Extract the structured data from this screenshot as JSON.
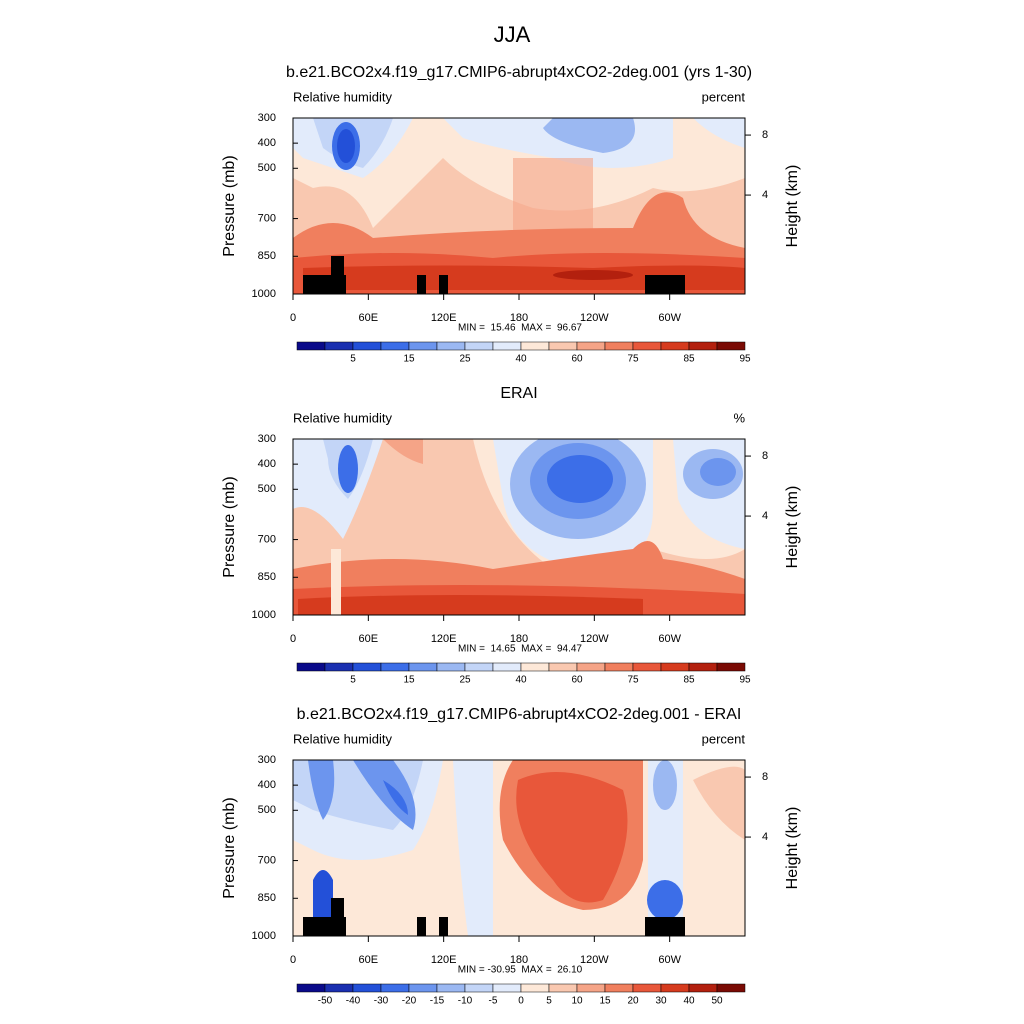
{
  "title": "JJA",
  "chart_data": [
    {
      "type": "contour",
      "title": "b.e21.BCO2x4.f19_g17.CMIP6-abrupt4xCO2-2deg.001 (yrs 1-30)",
      "left_label": "Relative humidity",
      "right_label": "percent",
      "ylabel": "Pressure (mb)",
      "y2label": "Height (km)",
      "xlim": [
        0,
        360
      ],
      "xticks": [
        0,
        {
          "value": 60,
          "label": "60E"
        },
        {
          "value": 120,
          "label": "120E"
        },
        180,
        {
          "value": 240,
          "label": "120W"
        },
        {
          "value": 300,
          "label": "60W"
        }
      ],
      "ylim": [
        1000,
        300
      ],
      "yticks": [
        300,
        400,
        500,
        700,
        850,
        1000
      ],
      "y2ticks": [
        8,
        4
      ],
      "stats": "MIN =  15.46  MAX =  96.67",
      "colorbar": {
        "colors": [
          "#0a0a8a",
          "#1a2fb0",
          "#2350d8",
          "#3c6ee8",
          "#6c95ee",
          "#9bb8f2",
          "#c3d5f7",
          "#e2ebfb",
          "#fde8d8",
          "#f9c8b0",
          "#f5a487",
          "#f07f5e",
          "#e8573a",
          "#d63b1e",
          "#b3200e",
          "#7a0a04"
        ],
        "labels": [
          5,
          15,
          25,
          40,
          60,
          75,
          85,
          95
        ]
      }
    },
    {
      "type": "contour",
      "title": "ERAI",
      "left_label": "Relative humidity",
      "right_label": "%",
      "ylabel": "Pressure (mb)",
      "y2label": "Height (km)",
      "xlim": [
        0,
        360
      ],
      "xticks": [
        0,
        {
          "value": 60,
          "label": "60E"
        },
        {
          "value": 120,
          "label": "120E"
        },
        180,
        {
          "value": 240,
          "label": "120W"
        },
        {
          "value": 300,
          "label": "60W"
        }
      ],
      "ylim": [
        1000,
        300
      ],
      "yticks": [
        300,
        400,
        500,
        700,
        850,
        1000
      ],
      "y2ticks": [
        8,
        4
      ],
      "stats": "MIN =  14.65  MAX =  94.47",
      "colorbar": {
        "colors": [
          "#0a0a8a",
          "#1a2fb0",
          "#2350d8",
          "#3c6ee8",
          "#6c95ee",
          "#9bb8f2",
          "#c3d5f7",
          "#e2ebfb",
          "#fde8d8",
          "#f9c8b0",
          "#f5a487",
          "#f07f5e",
          "#e8573a",
          "#d63b1e",
          "#b3200e",
          "#7a0a04"
        ],
        "labels": [
          5,
          15,
          25,
          40,
          60,
          75,
          85,
          95
        ]
      }
    },
    {
      "type": "contour",
      "title": "b.e21.BCO2x4.f19_g17.CMIP6-abrupt4xCO2-2deg.001 - ERAI",
      "left_label": "Relative humidity",
      "right_label": "percent",
      "ylabel": "Pressure (mb)",
      "y2label": "Height (km)",
      "xlim": [
        0,
        360
      ],
      "xticks": [
        0,
        {
          "value": 60,
          "label": "60E"
        },
        {
          "value": 120,
          "label": "120E"
        },
        180,
        {
          "value": 240,
          "label": "120W"
        },
        {
          "value": 300,
          "label": "60W"
        }
      ],
      "ylim": [
        1000,
        300
      ],
      "yticks": [
        300,
        400,
        500,
        700,
        850,
        1000
      ],
      "y2ticks": [
        8,
        4
      ],
      "stats": "MIN = -30.95  MAX =  26.10",
      "colorbar": {
        "colors": [
          "#0a0a8a",
          "#1a2fb0",
          "#2350d8",
          "#3c6ee8",
          "#6c95ee",
          "#9bb8f2",
          "#c3d5f7",
          "#e2ebfb",
          "#fde8d8",
          "#f9c8b0",
          "#f5a487",
          "#f07f5e",
          "#e8573a",
          "#d63b1e",
          "#b3200e",
          "#7a0a04"
        ],
        "labels": [
          -50,
          -40,
          -30,
          -20,
          -15,
          -10,
          -5,
          0,
          5,
          10,
          15,
          20,
          30,
          40,
          50
        ]
      }
    }
  ]
}
